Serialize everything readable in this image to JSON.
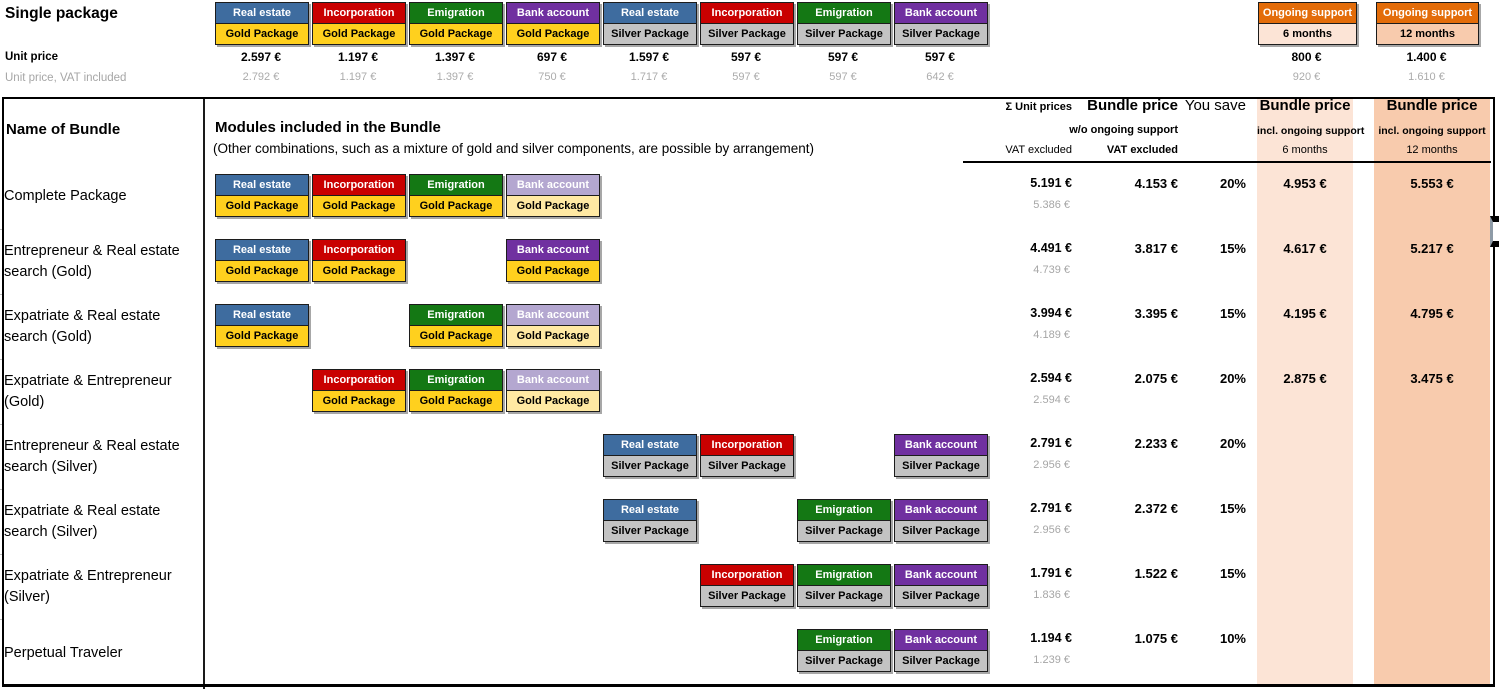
{
  "colors": {
    "blue": "#3E6C9F",
    "red": "#C90000",
    "green": "#147814",
    "purple": "#7030A0",
    "purple_faded": "#B4A7D0",
    "gold": "#FFD01E",
    "gold_faded": "#FFE9A3",
    "silver": "#C3C3C3",
    "orange": "#E36C09",
    "peach_light": "#FCE4D6",
    "peach_mid": "#F8CBAD",
    "gray_text": "#A6A6A6"
  },
  "page": {
    "title": "Single package"
  },
  "top": {
    "unit_price_label": "Unit price",
    "unit_price_vat_label": "Unit price, VAT included",
    "modules": [
      {
        "module": "Real estate",
        "module_color": "blue",
        "tier": "Gold Package",
        "tier_color": "gold",
        "price": "2.597 €",
        "price_vat": "2.792 €"
      },
      {
        "module": "Incorporation",
        "module_color": "red",
        "tier": "Gold Package",
        "tier_color": "gold",
        "price": "1.197 €",
        "price_vat": "1.197 €"
      },
      {
        "module": "Emigration",
        "module_color": "green",
        "tier": "Gold Package",
        "tier_color": "gold",
        "price": "1.397 €",
        "price_vat": "1.397 €"
      },
      {
        "module": "Bank account",
        "module_color": "purple",
        "tier": "Gold Package",
        "tier_color": "gold",
        "price": "697 €",
        "price_vat": "750 €"
      },
      {
        "module": "Real estate",
        "module_color": "blue",
        "tier": "Silver Package",
        "tier_color": "silver",
        "price": "1.597 €",
        "price_vat": "1.717 €"
      },
      {
        "module": "Incorporation",
        "module_color": "red",
        "tier": "Silver Package",
        "tier_color": "silver",
        "price": "597 €",
        "price_vat": "597 €"
      },
      {
        "module": "Emigration",
        "module_color": "green",
        "tier": "Silver Package",
        "tier_color": "silver",
        "price": "597 €",
        "price_vat": "597 €"
      },
      {
        "module": "Bank account",
        "module_color": "purple",
        "tier": "Silver Package",
        "tier_color": "silver",
        "price": "597 €",
        "price_vat": "642 €"
      }
    ],
    "support": [
      {
        "name": "Ongoing support",
        "duration": "6 months",
        "panel_color": "peach-light",
        "price": "800 €",
        "price_vat": "920 €"
      },
      {
        "name": "Ongoing support",
        "duration": "12 months",
        "panel_color": "peach-mid",
        "price": "1.400 €",
        "price_vat": "1.610 €"
      }
    ]
  },
  "table": {
    "header": {
      "name_of_bundle": "Name of Bundle",
      "modules_title": "Modules included in the Bundle",
      "modules_note": "(Other combinations, such as a mixture of gold and silver components, are possible by arrangement)",
      "sum_label": "Σ Unit prices",
      "sum_sub": "VAT excluded",
      "bundle_label": "Bundle price",
      "bundle_sub1": "w/o ongoing support",
      "bundle_sub2": "VAT excluded",
      "you_save": "You save",
      "bundle6_label": "Bundle price",
      "bundle6_sub1": "incl. ongoing support",
      "bundle6_sub2": "6 months",
      "bundle12_label": "Bundle price",
      "bundle12_sub1": "incl. ongoing support",
      "bundle12_sub2": "12 months"
    },
    "rows": [
      {
        "name": "Complete Package",
        "modules": [
          {
            "col": 0,
            "module": "Real estate",
            "module_color": "blue",
            "tier": "Gold Package",
            "tier_color": "gold"
          },
          {
            "col": 1,
            "module": "Incorporation",
            "module_color": "red",
            "tier": "Gold Package",
            "tier_color": "gold"
          },
          {
            "col": 2,
            "module": "Emigration",
            "module_color": "green",
            "tier": "Gold Package",
            "tier_color": "gold"
          },
          {
            "col": 3,
            "module": "Bank account",
            "module_color": "purple-faded",
            "tier": "Gold Package",
            "tier_color": "gold-faded"
          }
        ],
        "sum": "5.191 €",
        "sum_vat": "5.386 €",
        "bundle": "4.153 €",
        "save": "20%",
        "bundle6": "4.953 €",
        "bundle12": "5.553 €"
      },
      {
        "name": "Entrepreneur & Real estate search (Gold)",
        "modules": [
          {
            "col": 0,
            "module": "Real estate",
            "module_color": "blue",
            "tier": "Gold Package",
            "tier_color": "gold"
          },
          {
            "col": 1,
            "module": "Incorporation",
            "module_color": "red",
            "tier": "Gold Package",
            "tier_color": "gold"
          },
          {
            "col": 3,
            "module": "Bank account",
            "module_color": "purple",
            "tier": "Gold Package",
            "tier_color": "gold"
          }
        ],
        "sum": "4.491 €",
        "sum_vat": "4.739 €",
        "bundle": "3.817 €",
        "save": "15%",
        "bundle6": "4.617 €",
        "bundle12": "5.217 €"
      },
      {
        "name": "Expatriate & Real estate search (Gold)",
        "modules": [
          {
            "col": 0,
            "module": "Real estate",
            "module_color": "blue",
            "tier": "Gold Package",
            "tier_color": "gold"
          },
          {
            "col": 2,
            "module": "Emigration",
            "module_color": "green",
            "tier": "Gold Package",
            "tier_color": "gold"
          },
          {
            "col": 3,
            "module": "Bank account",
            "module_color": "purple-faded",
            "tier": "Gold Package",
            "tier_color": "gold-faded"
          }
        ],
        "sum": "3.994 €",
        "sum_vat": "4.189 €",
        "bundle": "3.395 €",
        "save": "15%",
        "bundle6": "4.195 €",
        "bundle12": "4.795 €"
      },
      {
        "name": "Expatriate & Entrepreneur (Gold)",
        "modules": [
          {
            "col": 1,
            "module": "Incorporation",
            "module_color": "red",
            "tier": "Gold Package",
            "tier_color": "gold"
          },
          {
            "col": 2,
            "module": "Emigration",
            "module_color": "green",
            "tier": "Gold Package",
            "tier_color": "gold"
          },
          {
            "col": 3,
            "module": "Bank account",
            "module_color": "purple-faded",
            "tier": "Gold Package",
            "tier_color": "gold-faded"
          }
        ],
        "sum": "2.594 €",
        "sum_vat": "2.594 €",
        "bundle": "2.075 €",
        "save": "20%",
        "bundle6": "2.875 €",
        "bundle12": "3.475 €"
      },
      {
        "name": "Entrepreneur & Real estate search (Silver)",
        "modules": [
          {
            "col": 4,
            "module": "Real estate",
            "module_color": "blue",
            "tier": "Silver Package",
            "tier_color": "silver"
          },
          {
            "col": 5,
            "module": "Incorporation",
            "module_color": "red",
            "tier": "Silver Package",
            "tier_color": "silver"
          },
          {
            "col": 7,
            "module": "Bank account",
            "module_color": "purple",
            "tier": "Silver Package",
            "tier_color": "silver"
          }
        ],
        "sum": "2.791 €",
        "sum_vat": "2.956 €",
        "bundle": "2.233 €",
        "save": "20%",
        "bundle6": "",
        "bundle12": ""
      },
      {
        "name": "Expatriate & Real estate search (Silver)",
        "modules": [
          {
            "col": 4,
            "module": "Real estate",
            "module_color": "blue",
            "tier": "Silver Package",
            "tier_color": "silver"
          },
          {
            "col": 6,
            "module": "Emigration",
            "module_color": "green",
            "tier": "Silver Package",
            "tier_color": "silver"
          },
          {
            "col": 7,
            "module": "Bank account",
            "module_color": "purple",
            "tier": "Silver Package",
            "tier_color": "silver"
          }
        ],
        "sum": "2.791 €",
        "sum_vat": "2.956 €",
        "bundle": "2.372 €",
        "save": "15%",
        "bundle6": "",
        "bundle12": ""
      },
      {
        "name": "Expatriate & Entrepreneur (Silver)",
        "modules": [
          {
            "col": 5,
            "module": "Incorporation",
            "module_color": "red",
            "tier": "Silver Package",
            "tier_color": "silver"
          },
          {
            "col": 6,
            "module": "Emigration",
            "module_color": "green",
            "tier": "Silver Package",
            "tier_color": "silver"
          },
          {
            "col": 7,
            "module": "Bank account",
            "module_color": "purple",
            "tier": "Silver Package",
            "tier_color": "silver"
          }
        ],
        "sum": "1.791 €",
        "sum_vat": "1.836 €",
        "bundle": "1.522 €",
        "save": "15%",
        "bundle6": "",
        "bundle12": ""
      },
      {
        "name": "Perpetual Traveler",
        "modules": [
          {
            "col": 6,
            "module": "Emigration",
            "module_color": "green",
            "tier": "Silver Package",
            "tier_color": "silver"
          },
          {
            "col": 7,
            "module": "Bank account",
            "module_color": "purple",
            "tier": "Silver Package",
            "tier_color": "silver"
          }
        ],
        "sum": "1.194 €",
        "sum_vat": "1.239 €",
        "bundle": "1.075 €",
        "save": "10%",
        "bundle6": "",
        "bundle12": ""
      }
    ]
  }
}
